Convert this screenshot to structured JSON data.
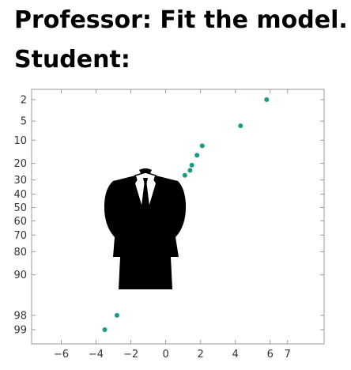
{
  "caption": {
    "line1": "Professor: Fit the model.",
    "line2": "Student:"
  },
  "chart_data": {
    "type": "scatter",
    "title": "",
    "xlabel": "",
    "ylabel": "",
    "x_ticks": [
      -6,
      -4,
      -2,
      0,
      2,
      4,
      6,
      7
    ],
    "y_ticks": [
      2,
      5,
      10,
      20,
      30,
      40,
      50,
      60,
      70,
      80,
      90,
      98,
      99
    ],
    "y_scale": "normal-probability",
    "xlim": [
      -7.7,
      9.1
    ],
    "grid": false,
    "point_color": "#1a9b83",
    "points": [
      {
        "x": 5.8,
        "y": 2
      },
      {
        "x": 4.3,
        "y": 6
      },
      {
        "x": 2.1,
        "y": 12
      },
      {
        "x": 1.8,
        "y": 16
      },
      {
        "x": 1.5,
        "y": 21
      },
      {
        "x": 1.4,
        "y": 24
      },
      {
        "x": 1.1,
        "y": 27
      },
      {
        "x": -2.8,
        "y": 98
      },
      {
        "x": -3.5,
        "y": 99
      }
    ]
  },
  "overlay": {
    "icon": "headless-suit-icon"
  }
}
